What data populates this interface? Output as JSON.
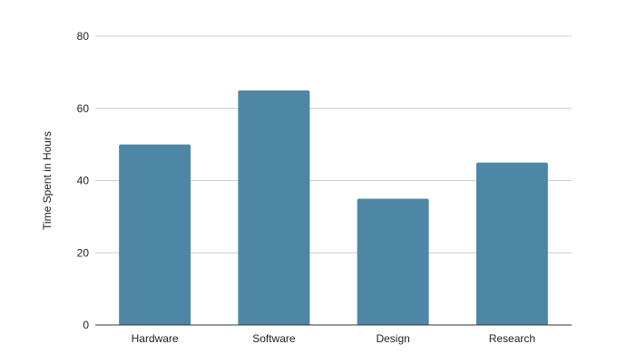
{
  "chart_data": {
    "type": "bar",
    "categories": [
      "Hardware",
      "Software",
      "Design",
      "Research"
    ],
    "values": [
      50,
      65,
      35,
      45
    ],
    "title": "",
    "xlabel": "",
    "ylabel": "Time Spent in Hours",
    "ylim": [
      0,
      80
    ],
    "yticks": [
      0,
      20,
      40,
      60,
      80
    ],
    "grid": true,
    "legend": "none",
    "colors": {
      "bar": "#4e87a5",
      "grid": "#cccccc",
      "axis": "#333333"
    }
  }
}
